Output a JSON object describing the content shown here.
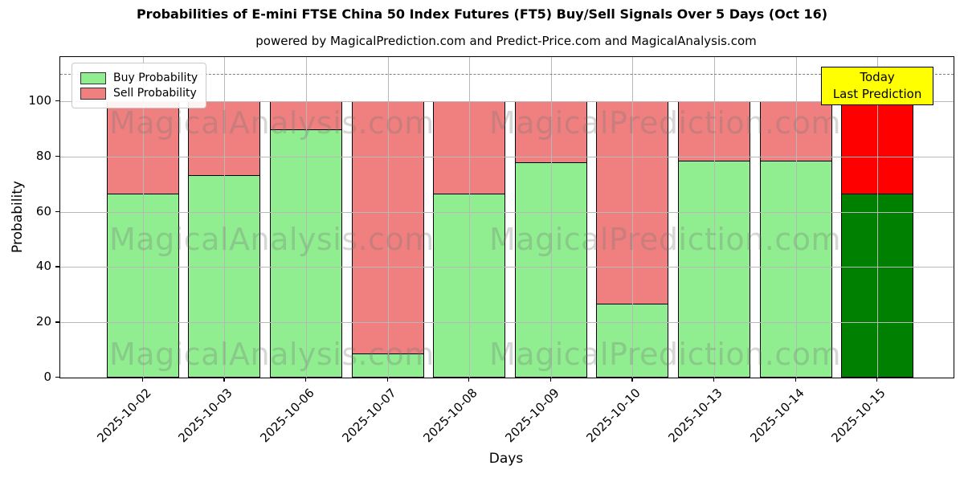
{
  "title": "Probabilities of E-mini FTSE China 50 Index Futures (FT5) Buy/Sell Signals Over 5 Days (Oct 16)",
  "subtitle": "powered by MagicalPrediction.com and Predict-Price.com and MagicalAnalysis.com",
  "watermark": {
    "left_text": "MagicalAnalysis.com",
    "right_text": "MagicalPrediction.com"
  },
  "legend": {
    "items": [
      {
        "label": "Buy Probability",
        "color": "#90EE90"
      },
      {
        "label": "Sell Probability",
        "color": "#F08080"
      }
    ]
  },
  "annotation": {
    "line1": "Today",
    "line2": "Last Prediction",
    "bg_color": "#FFFF00"
  },
  "axes": {
    "xlabel": "Days",
    "ylabel": "Probability",
    "yticks": [
      0,
      20,
      40,
      60,
      80,
      100
    ],
    "ylim": [
      0,
      116
    ],
    "dashed_line_y": 110,
    "grid": true
  },
  "chart_data": {
    "type": "bar",
    "stacked": true,
    "title": "Probabilities of E-mini FTSE China 50 Index Futures (FT5) Buy/Sell Signals Over 5 Days (Oct 16)",
    "xlabel": "Days",
    "ylabel": "Probability",
    "ylim": [
      0,
      116
    ],
    "grid": true,
    "legend_position": "upper left",
    "threshold_dashed_line": 110,
    "categories": [
      "2025-10-02",
      "2025-10-03",
      "2025-10-06",
      "2025-10-07",
      "2025-10-08",
      "2025-10-09",
      "2025-10-10",
      "2025-10-13",
      "2025-10-14",
      "2025-10-15"
    ],
    "series": [
      {
        "name": "Buy Probability",
        "values": [
          66.7,
          73.5,
          90,
          9,
          66.7,
          78,
          27,
          78.6,
          78.6,
          66.7
        ],
        "color": "#90EE90",
        "final_bar_color": "#008000"
      },
      {
        "name": "Sell Probability",
        "values": [
          33.3,
          26.5,
          10,
          91,
          33.3,
          22,
          73,
          21.4,
          21.4,
          33.3
        ],
        "color": "#F08080",
        "final_bar_color": "#FF0000"
      }
    ]
  }
}
